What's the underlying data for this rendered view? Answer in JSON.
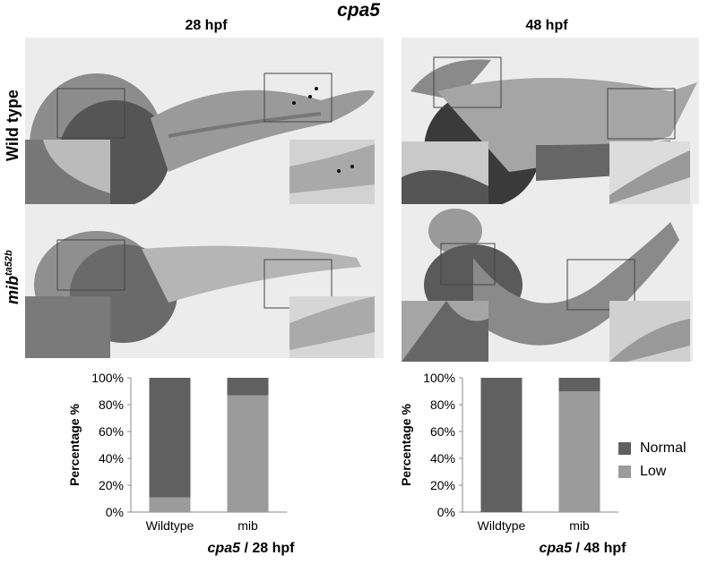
{
  "figure": {
    "title": "cpa5",
    "columns": [
      "28 hpf",
      "48 hpf"
    ],
    "rows": [
      "Wild type",
      "mib"
    ],
    "row_superscript": "ta52b"
  },
  "colors": {
    "normal": "#606060",
    "low": "#9b9b9b",
    "embryo_dark": "#3e3e3e",
    "embryo_mid": "#7a7a7a",
    "embryo_light": "#bdbdbd",
    "background": "#ececec"
  },
  "chart_data": [
    {
      "type": "bar",
      "stacked": true,
      "categories": [
        "Wildtype",
        "mib"
      ],
      "series": [
        {
          "name": "Low",
          "values": [
            11,
            87
          ]
        },
        {
          "name": "Normal",
          "values": [
            89,
            13
          ]
        }
      ],
      "ylabel": "Percentage %",
      "yticks": [
        "0%",
        "20%",
        "40%",
        "60%",
        "80%",
        "100%"
      ],
      "ylim": [
        0,
        100
      ],
      "caption_gene": "cpa5",
      "caption_stage": " / 28 hpf"
    },
    {
      "type": "bar",
      "stacked": true,
      "categories": [
        "Wildtype",
        "mib"
      ],
      "series": [
        {
          "name": "Low",
          "values": [
            0,
            90
          ]
        },
        {
          "name": "Normal",
          "values": [
            100,
            10
          ]
        }
      ],
      "ylabel": "Percentage %",
      "yticks": [
        "0%",
        "20%",
        "40%",
        "60%",
        "80%",
        "100%"
      ],
      "ylim": [
        0,
        100
      ],
      "caption_gene": "cpa5",
      "caption_stage": " / 48 hpf"
    }
  ],
  "legend": [
    {
      "label": "Normal",
      "color": "#606060"
    },
    {
      "label": "Low",
      "color": "#9b9b9b"
    }
  ]
}
